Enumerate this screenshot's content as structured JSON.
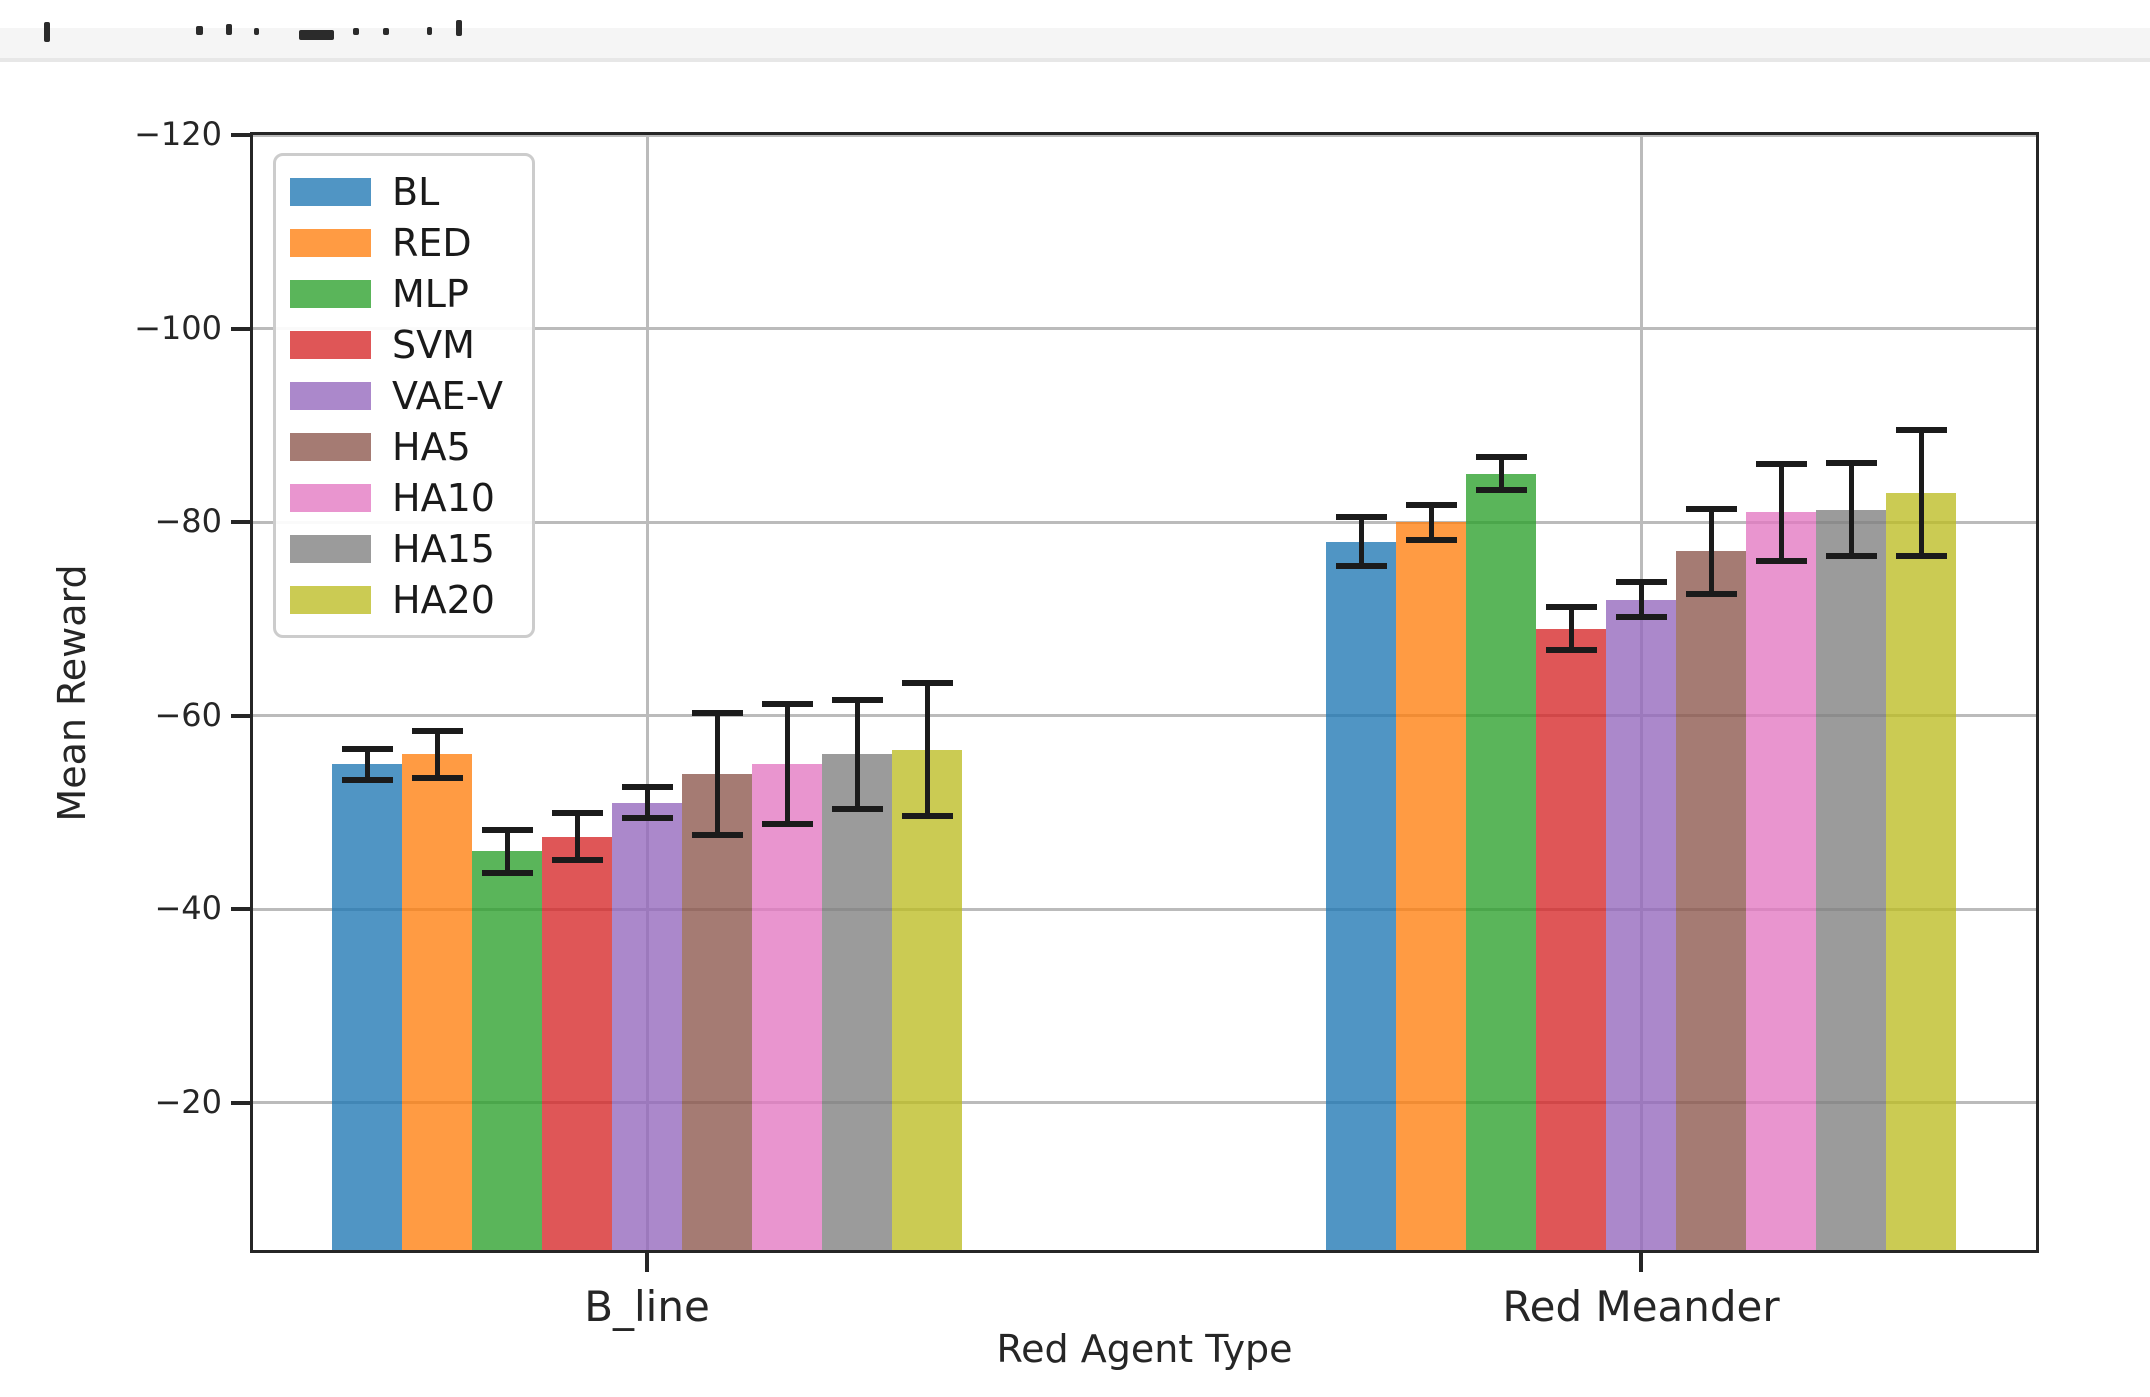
{
  "chart_data": {
    "type": "bar",
    "title": "",
    "xlabel": "Red Agent Type",
    "ylabel": "Mean Reward",
    "categories": [
      "B_line",
      "Red Meander"
    ],
    "y_axis": {
      "inverted": true,
      "top_value": -120,
      "bottom_value": -4.8,
      "ticks": [
        -120,
        -100,
        -80,
        -60,
        -40,
        -20
      ],
      "tick_labels": [
        "−120",
        "−100",
        "−80",
        "−60",
        "−40",
        "−20"
      ]
    },
    "grid": true,
    "legend_position": "upper left",
    "bar_alpha": 0.78,
    "error_bar_color": "#1b1b1b",
    "series": [
      {
        "name": "BL",
        "color": "#1f77b4",
        "values": [
          -55,
          -78
        ],
        "errors": [
          1.6,
          2.5
        ]
      },
      {
        "name": "RED",
        "color": "#ff7f0e",
        "values": [
          -56,
          -80
        ],
        "errors": [
          2.4,
          1.8
        ]
      },
      {
        "name": "MLP",
        "color": "#2ca02c",
        "values": [
          -46,
          -85
        ],
        "errors": [
          2.2,
          1.7
        ]
      },
      {
        "name": "SVM",
        "color": "#d62728",
        "values": [
          -47.5,
          -69
        ],
        "errors": [
          2.4,
          2.2
        ]
      },
      {
        "name": "VAE-V",
        "color": "#9467bd",
        "values": [
          -51,
          -72
        ],
        "errors": [
          1.6,
          1.8
        ]
      },
      {
        "name": "HA5",
        "color": "#8c564b",
        "values": [
          -54,
          -77
        ],
        "errors": [
          6.3,
          4.4
        ]
      },
      {
        "name": "HA10",
        "color": "#e377c2",
        "values": [
          -55,
          -81
        ],
        "errors": [
          6.2,
          5.0
        ]
      },
      {
        "name": "HA15",
        "color": "#7f7f7f",
        "values": [
          -56,
          -81.3
        ],
        "errors": [
          5.6,
          4.8
        ]
      },
      {
        "name": "HA20",
        "color": "#bcbd22",
        "values": [
          -56.5,
          -83
        ],
        "errors": [
          6.9,
          6.5
        ]
      }
    ]
  }
}
